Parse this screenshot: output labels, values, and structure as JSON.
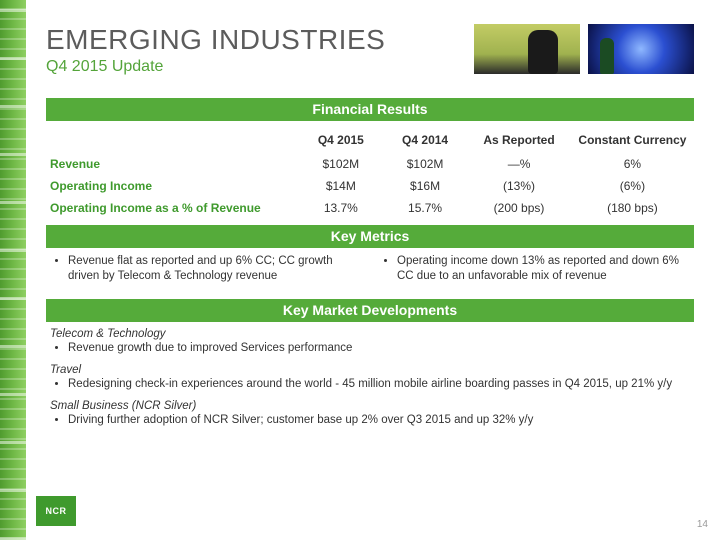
{
  "header": {
    "title": "EMERGING INDUSTRIES",
    "subtitle": "Q4 2015 Update"
  },
  "colors": {
    "accent": "#55ab3a",
    "accent_text": "#3f9a2d",
    "title_gray": "#5c5c5c"
  },
  "sections": {
    "financial": {
      "bar_label": "Financial Results",
      "columns": [
        "",
        "Q4 2015",
        "Q4 2014",
        "As Reported",
        "Constant Currency"
      ],
      "rows": [
        [
          "Revenue",
          "$102M",
          "$102M",
          "—%",
          "6%"
        ],
        [
          "Operating Income",
          "$14M",
          "$16M",
          "(13%)",
          "(6%)"
        ],
        [
          "Operating Income as a % of Revenue",
          "13.7%",
          "15.7%",
          "(200 bps)",
          "(180 bps)"
        ]
      ]
    },
    "key_metrics": {
      "bar_label": "Key Metrics",
      "left": [
        "Revenue flat as reported and up 6% CC; CC growth driven by Telecom & Technology revenue"
      ],
      "right": [
        "Operating income down 13% as reported and down 6% CC due to an unfavorable mix of revenue"
      ]
    },
    "developments": {
      "bar_label": "Key Market Developments",
      "groups": [
        {
          "heading": "Telecom & Technology",
          "bullets": [
            "Revenue growth due to improved Services performance"
          ]
        },
        {
          "heading": "Travel",
          "bullets": [
            "Redesigning check-in experiences around the world - 45 million mobile airline boarding passes in Q4 2015, up 21% y/y"
          ]
        },
        {
          "heading": "Small Business (NCR Silver)",
          "bullets": [
            "Driving further adoption of NCR Silver; customer base up 2% over Q3 2015 and up 32% y/y"
          ]
        }
      ]
    }
  },
  "footer": {
    "logo_text": "NCR",
    "page_number": "14"
  }
}
